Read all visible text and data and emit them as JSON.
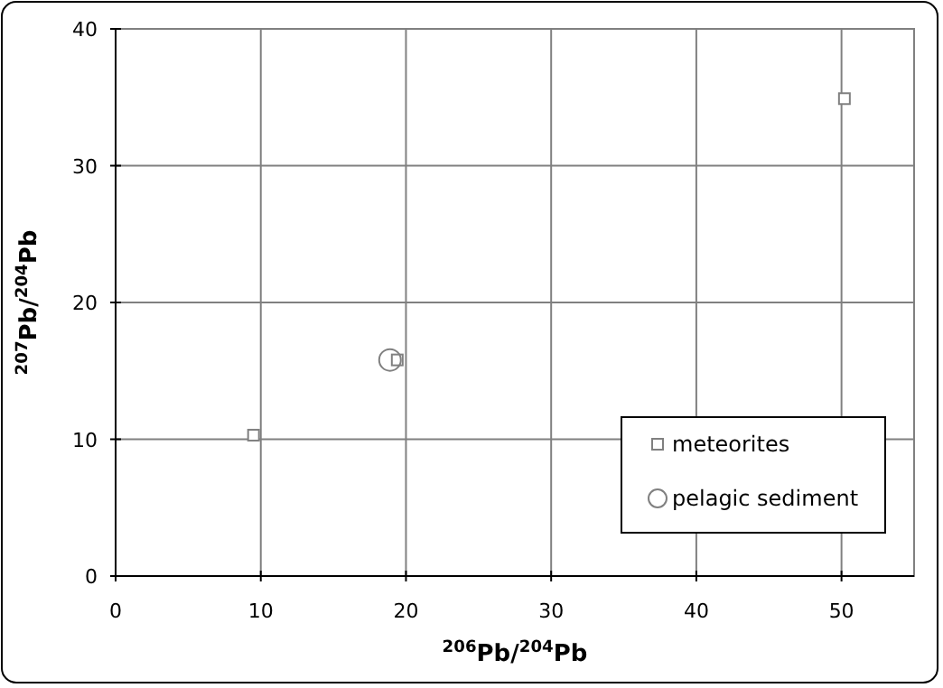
{
  "chart_data": {
    "type": "scatter",
    "xlabel": "$^{206}$Pb/$^{204}$Pb",
    "ylabel": "$^{207}$Pb/$^{204}$Pb",
    "xlim": [
      0,
      55
    ],
    "xticks": [
      0,
      10,
      20,
      30,
      40,
      50
    ],
    "ylim": [
      0,
      40
    ],
    "yticks": [
      0,
      10,
      20,
      30,
      40
    ],
    "grid": true,
    "legend": "bottom right",
    "series": [
      {
        "name": "meteorites",
        "color": "#808080",
        "marker": "square",
        "x": [
          9.5,
          19.4,
          50.2
        ],
        "values": [
          10.3,
          15.8,
          34.9
        ]
      },
      {
        "name": "pelagic sediment",
        "color": "#808080",
        "marker": "circle",
        "x": [
          18.9
        ],
        "values": [
          15.8
        ]
      }
    ]
  }
}
